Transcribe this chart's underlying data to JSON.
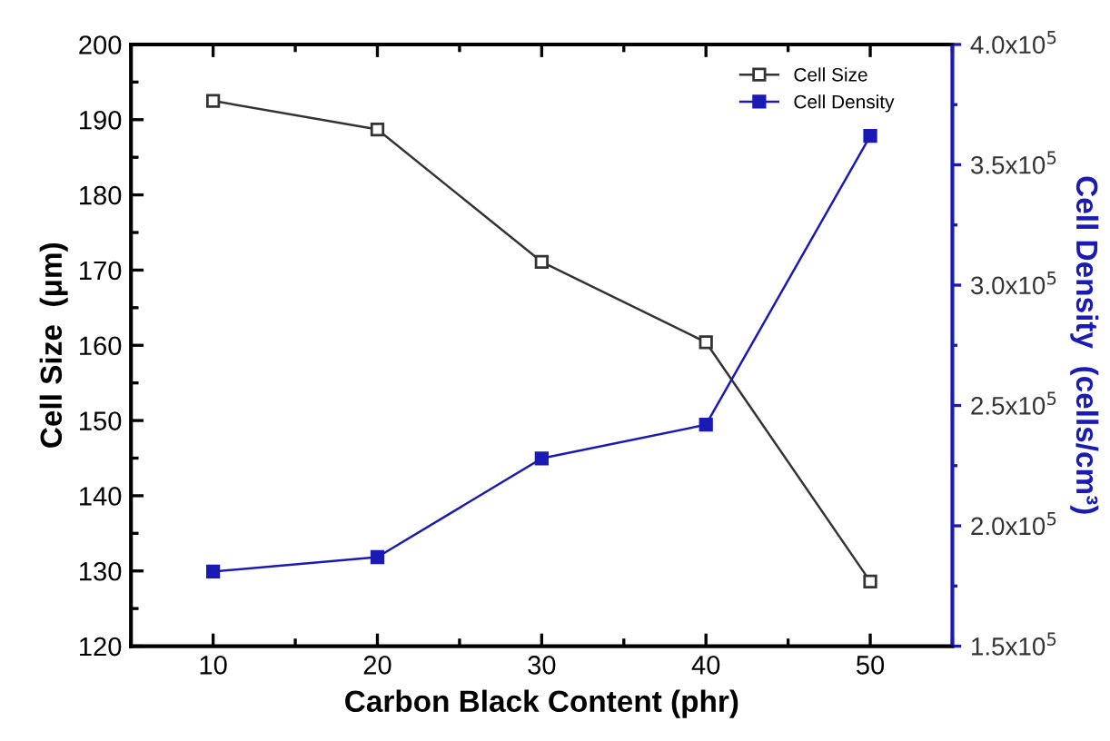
{
  "chart_data": {
    "type": "line",
    "xlabel": "Carbon Black Content (phr)",
    "ylabel": "Cell Size  (μm)",
    "y2label": "Cell Density  (cells/cm³)",
    "x": [
      10,
      20,
      30,
      40,
      50
    ],
    "series": [
      {
        "name": "Cell Size",
        "color": "#333333",
        "values": [
          192.5,
          188.7,
          171.1,
          160.4,
          128.6
        ]
      },
      {
        "name": "Cell Density",
        "color": "#1a1ab4",
        "axis": "y2",
        "values": [
          181000,
          187000,
          228000,
          242000,
          362000
        ]
      }
    ],
    "xlim": [
      5,
      55
    ],
    "xticks": [
      10,
      20,
      30,
      40,
      50
    ],
    "ylim": [
      120,
      200
    ],
    "yticks": [
      120,
      130,
      140,
      150,
      160,
      170,
      180,
      190,
      200
    ],
    "y2lim": [
      150000,
      400000
    ],
    "y2ticks": [
      {
        "value": 150000,
        "label": "1.5x10$^{5}$"
      },
      {
        "value": 200000,
        "label": "2.0x10$^{5}$"
      },
      {
        "value": 250000,
        "label": "2.5x10$^{5}$"
      },
      {
        "value": 300000,
        "label": "3.0x10$^{5}$"
      },
      {
        "value": 350000,
        "label": "3.5x10$^{5}$"
      },
      {
        "value": 400000,
        "label": "4.0x10$^{5}$"
      }
    ],
    "marker": "square",
    "line_style": "solid",
    "legend": "top right",
    "grid": false
  }
}
